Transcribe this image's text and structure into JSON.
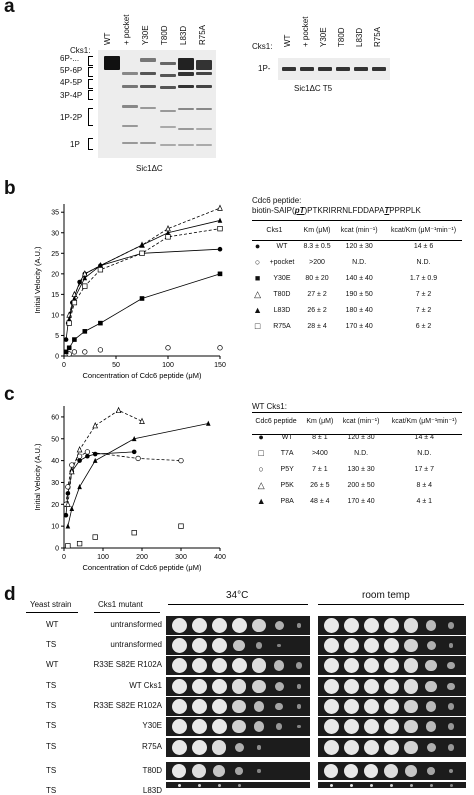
{
  "panel_a": {
    "label": "a",
    "cks1_label": "Cks1:",
    "lanes": [
      "WT",
      "+ pocket",
      "Y30E",
      "T80D",
      "L83D",
      "R75A"
    ],
    "markers": [
      "6P-...",
      "5P-6P",
      "4P-5P",
      "3P-4P",
      "1P-2P",
      "1P"
    ],
    "gel_caption": "Sic1ΔC",
    "right_cks1_label": "Cks1:",
    "right_lanes": [
      "WT",
      "+ pocket",
      "Y30E",
      "T80D",
      "L83D",
      "R75A"
    ],
    "right_marker": "1P-",
    "right_caption": "Sic1ΔC T5"
  },
  "panel_b": {
    "label": "b",
    "peptide_title": "Cdc6 peptide:",
    "peptide_seq_pre": "biotin-SAIP(",
    "peptide_seq_t1": "pT",
    "peptide_seq_mid": ")PTKRIRRNLFDDAPA",
    "peptide_seq_t2": "T",
    "peptide_seq_post": "PPRPLK",
    "table_headers": [
      "Cks1",
      "Km (μM)",
      "kcat (min⁻¹)",
      "kcat/Km (μM⁻¹min⁻¹)"
    ],
    "rows": [
      {
        "symbol": "●",
        "name": "WT",
        "km": "8.3 ± 0.5",
        "kcat": "120 ± 30",
        "ratio": "14 ± 6"
      },
      {
        "symbol": "○",
        "name": "+pocket",
        "km": ">200",
        "kcat": "N.D.",
        "ratio": "N.D."
      },
      {
        "symbol": "■",
        "name": "Y30E",
        "km": "80 ± 20",
        "kcat": "140 ± 40",
        "ratio": "1.7 ± 0.9"
      },
      {
        "symbol": "△",
        "name": "T80D",
        "km": "27 ± 2",
        "kcat": "190 ± 50",
        "ratio": "7 ± 2"
      },
      {
        "symbol": "▲",
        "name": "L83D",
        "km": "26 ± 2",
        "kcat": "180 ± 40",
        "ratio": "7 ± 2"
      },
      {
        "symbol": "□",
        "name": "R75A",
        "km": "28 ± 4",
        "kcat": "170 ± 40",
        "ratio": "6 ± 2"
      }
    ]
  },
  "panel_c": {
    "label": "c",
    "table_title": "WT Cks1:",
    "table_headers": [
      "Cdc6 peptide",
      "Km (μM)",
      "kcat (min⁻¹)",
      "kcat/Km (μM⁻¹min⁻¹)"
    ],
    "rows": [
      {
        "symbol": "●",
        "name": "WT",
        "km": "8 ± 1",
        "kcat": "120 ± 30",
        "ratio": "14 ± 4"
      },
      {
        "symbol": "□",
        "name": "T7A",
        "km": ">400",
        "kcat": "N.D.",
        "ratio": "N.D."
      },
      {
        "symbol": "○",
        "name": "P5Y",
        "km": "7 ± 1",
        "kcat": "130 ± 30",
        "ratio": "17 ± 7"
      },
      {
        "symbol": "△",
        "name": "P5K",
        "km": "26 ± 5",
        "kcat": "200 ± 50",
        "ratio": "8 ± 4"
      },
      {
        "symbol": "▲",
        "name": "P8A",
        "km": "48 ± 4",
        "kcat": "170 ± 40",
        "ratio": "4 ± 1"
      }
    ]
  },
  "chart_data": [
    {
      "type": "scatter",
      "xlabel": "Concentration of Cdc6 peptide (μM)",
      "ylabel": "Initial Velocity (A.U.)",
      "xlim": [
        0,
        150
      ],
      "ylim": [
        0,
        37
      ],
      "xticks": [
        "0",
        "50",
        "100",
        "150"
      ],
      "yticks": [
        "0",
        "5",
        "10",
        "15",
        "20",
        "25",
        "30",
        "35"
      ],
      "series": [
        {
          "name": "WT",
          "marker": "filled-circle",
          "x": [
            2,
            4,
            8,
            15,
            20,
            35,
            75,
            150
          ],
          "y": [
            4,
            8,
            13,
            18,
            20,
            22,
            25,
            26
          ]
        },
        {
          "name": "+pocket",
          "marker": "open-circle",
          "x": [
            5,
            10,
            20,
            35,
            100,
            150
          ],
          "y": [
            0.5,
            1,
            1,
            1.5,
            2,
            2
          ]
        },
        {
          "name": "Y30E",
          "marker": "filled-square",
          "x": [
            2,
            5,
            10,
            20,
            35,
            75,
            150
          ],
          "y": [
            1,
            2,
            4,
            6,
            8,
            14,
            20
          ]
        },
        {
          "name": "T80D",
          "marker": "open-triangle",
          "x": [
            5,
            10,
            20,
            35,
            75,
            100,
            150
          ],
          "y": [
            10,
            15,
            20,
            22,
            27,
            31,
            36
          ]
        },
        {
          "name": "L83D",
          "marker": "filled-triangle",
          "x": [
            5,
            10,
            20,
            35,
            75,
            100,
            150
          ],
          "y": [
            9,
            14,
            19,
            22,
            27,
            30,
            33
          ]
        },
        {
          "name": "R75A",
          "marker": "open-square",
          "x": [
            5,
            10,
            20,
            35,
            75,
            100,
            150
          ],
          "y": [
            8,
            13,
            17,
            21,
            25,
            29,
            31
          ]
        }
      ]
    },
    {
      "type": "scatter",
      "xlabel": "Concentration of Cdc6 peptide (μM)",
      "ylabel": "Initial Velocity (A.U.)",
      "xlim": [
        0,
        400
      ],
      "ylim": [
        0,
        65
      ],
      "xticks": [
        "0",
        "100",
        "200",
        "300",
        "400"
      ],
      "yticks": [
        "0",
        "10",
        "20",
        "30",
        "40",
        "50",
        "60"
      ],
      "series": [
        {
          "name": "WT",
          "marker": "filled-circle",
          "x": [
            5,
            10,
            20,
            40,
            60,
            80,
            180
          ],
          "y": [
            15,
            25,
            35,
            40,
            42,
            43,
            44
          ]
        },
        {
          "name": "T7A",
          "marker": "open-square",
          "x": [
            10,
            40,
            80,
            180,
            300
          ],
          "y": [
            1,
            2,
            5,
            7,
            10
          ]
        },
        {
          "name": "P5Y",
          "marker": "open-circle",
          "x": [
            5,
            10,
            20,
            40,
            60,
            190,
            300
          ],
          "y": [
            20,
            28,
            38,
            42,
            44,
            41,
            40
          ]
        },
        {
          "name": "P5K",
          "marker": "open-triangle",
          "x": [
            10,
            20,
            40,
            80,
            140,
            200
          ],
          "y": [
            20,
            35,
            45,
            56,
            63,
            58
          ]
        },
        {
          "name": "P8A",
          "marker": "filled-triangle",
          "x": [
            10,
            20,
            40,
            80,
            180,
            370
          ],
          "y": [
            10,
            18,
            28,
            40,
            50,
            57
          ]
        }
      ]
    }
  ],
  "panel_d": {
    "label": "d",
    "col_strain": "Yeast strain",
    "col_mutant": "Cks1 mutant",
    "temp_left": "34°C",
    "temp_right": "room temp",
    "rows": [
      {
        "strain": "WT",
        "mutant": "untransformed"
      },
      {
        "strain": "TS",
        "mutant": "untransformed"
      },
      {
        "strain": "WT",
        "mutant": "R33E S82E R102A"
      },
      {
        "strain": "TS",
        "mutant": "WT Cks1"
      },
      {
        "strain": "TS",
        "mutant": "R33E S82E R102A"
      },
      {
        "strain": "TS",
        "mutant": "Y30E"
      },
      {
        "strain": "TS",
        "mutant": "R75A"
      },
      {
        "strain": "TS",
        "mutant": "T80D"
      },
      {
        "strain": "TS",
        "mutant": "L83D"
      }
    ]
  }
}
